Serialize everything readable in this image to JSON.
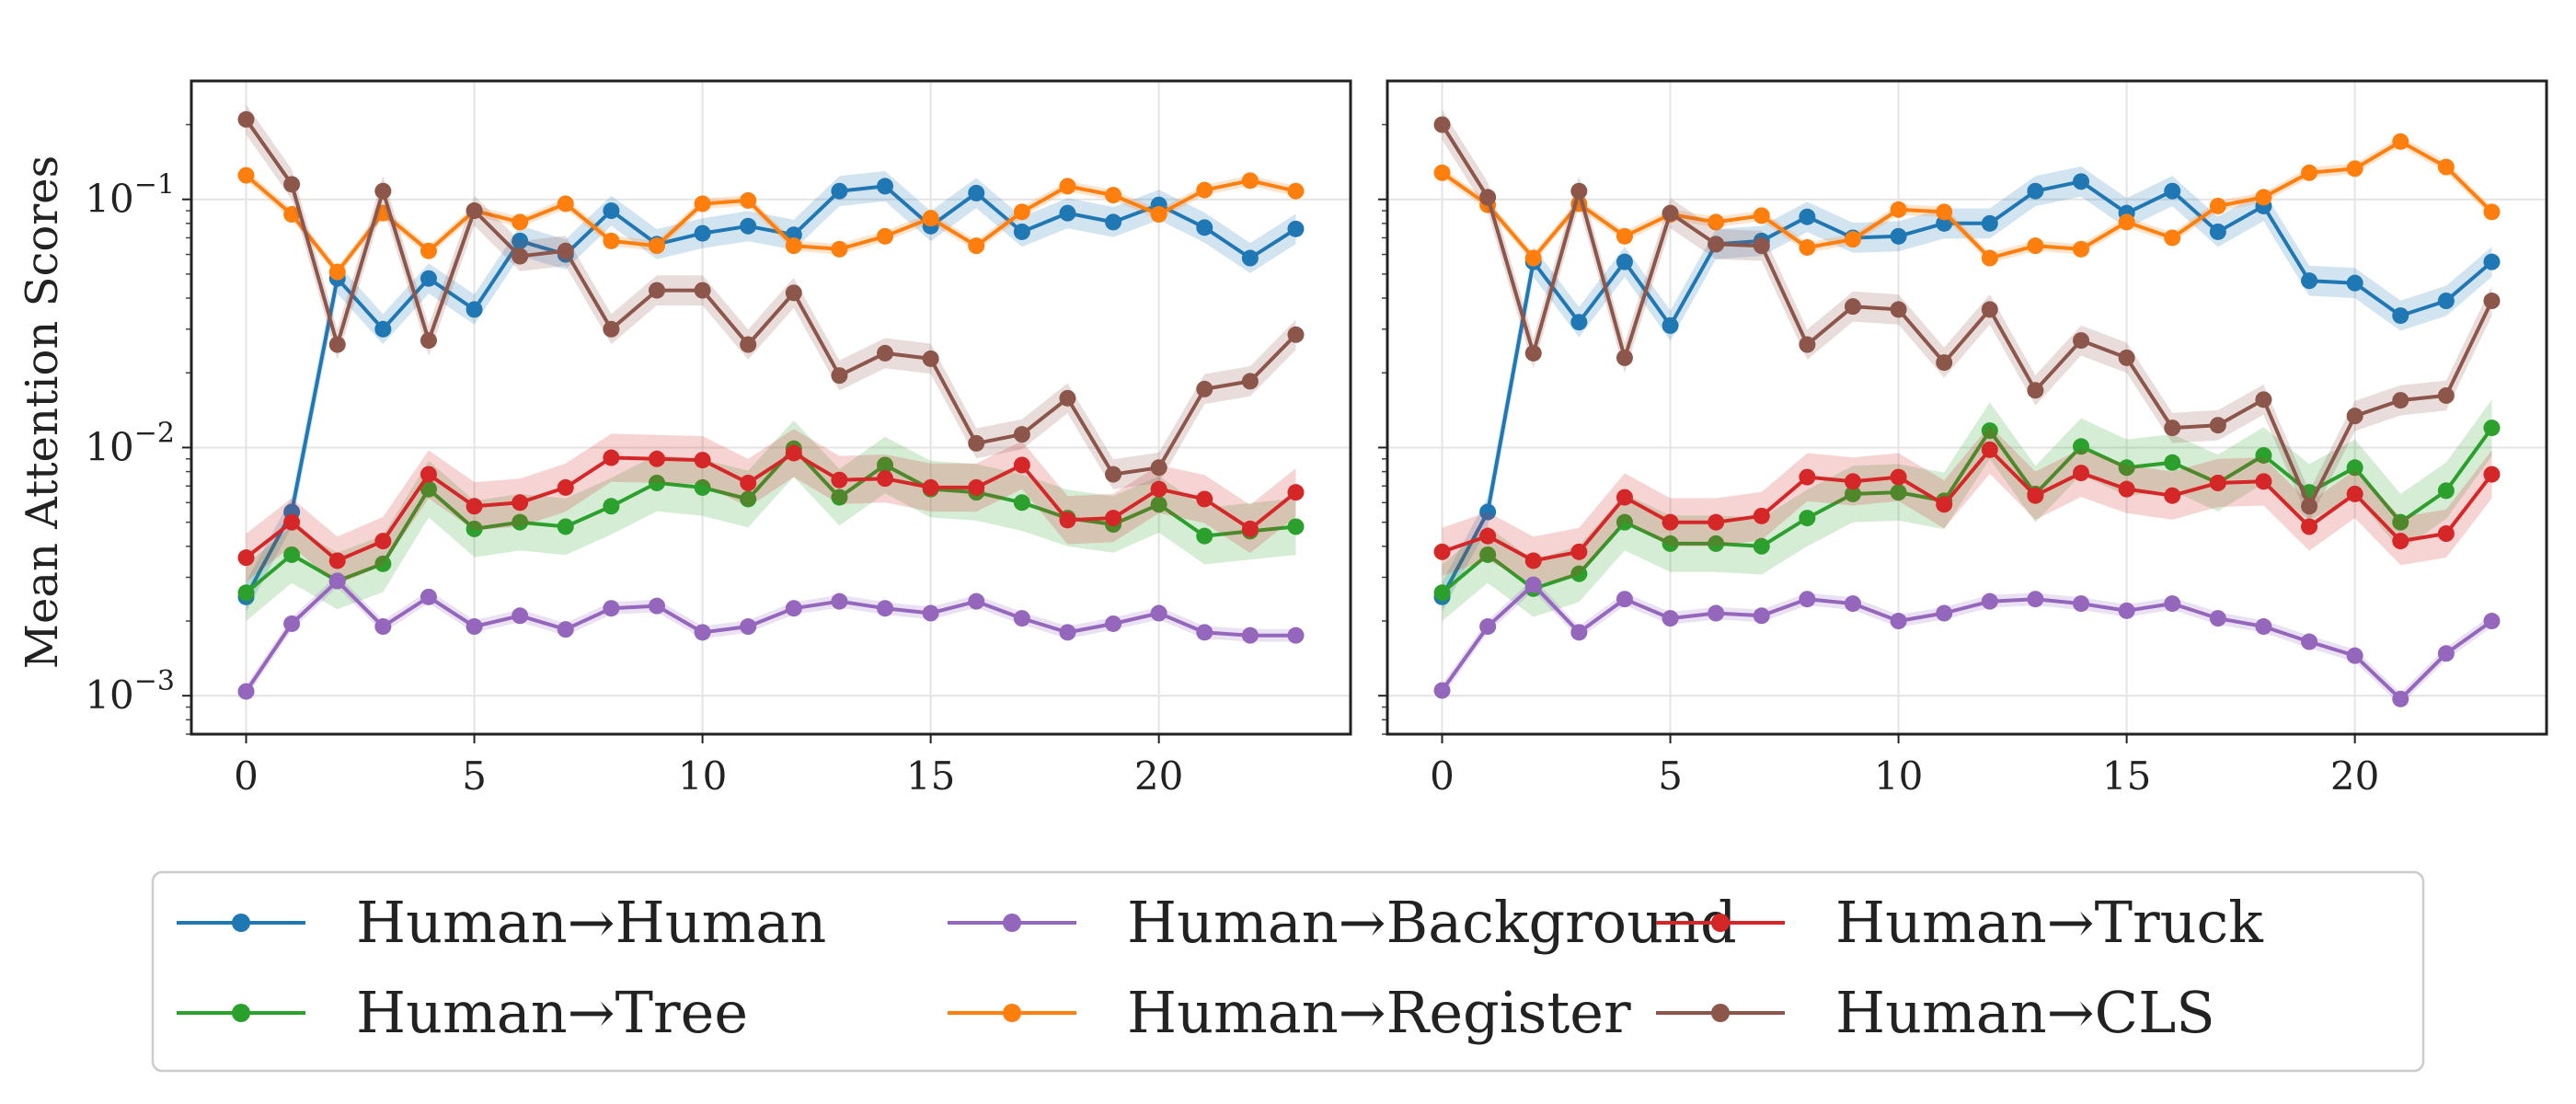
{
  "chart_data": {
    "type": "line",
    "ylabel": "Mean Attention Scores",
    "yscale": "log",
    "ylim": [
      0.0007,
      0.3
    ],
    "xlim": [
      -1.2,
      24.2
    ],
    "xticks": [
      0,
      5,
      10,
      15,
      20
    ],
    "yticks": [
      {
        "value": 0.001,
        "base": "10",
        "exp": "−3"
      },
      {
        "value": 0.01,
        "base": "10",
        "exp": "−2"
      },
      {
        "value": 0.1,
        "base": "10",
        "exp": "−1"
      }
    ],
    "grid": true,
    "legend_placement": "bottom",
    "series_meta": [
      {
        "name": "Human→Human",
        "color": "#1f77b4"
      },
      {
        "name": "Human→Register",
        "color": "#ff7f0e"
      },
      {
        "name": "Human→Tree",
        "color": "#2ca02c"
      },
      {
        "name": "Human→Truck",
        "color": "#d62728"
      },
      {
        "name": "Human→Background",
        "color": "#9467bd"
      },
      {
        "name": "Human→CLS",
        "color": "#8c564b"
      }
    ],
    "legend_order": [
      0,
      2,
      4,
      1,
      3,
      5
    ],
    "panels": [
      {
        "name": "left",
        "x": [
          0,
          1,
          2,
          3,
          4,
          5,
          6,
          7,
          8,
          9,
          10,
          11,
          12,
          13,
          14,
          15,
          16,
          17,
          18,
          19,
          20,
          21,
          22,
          23
        ],
        "series": [
          {
            "name": "Human→Human",
            "band": 0.15,
            "values": [
              0.0025,
              0.0055,
              0.048,
              0.03,
              0.048,
              0.036,
              0.068,
              0.06,
              0.09,
              0.066,
              0.073,
              0.078,
              0.072,
              0.108,
              0.113,
              0.078,
              0.106,
              0.074,
              0.088,
              0.081,
              0.095,
              0.077,
              0.058,
              0.076
            ]
          },
          {
            "name": "Human→Register",
            "band": 0.05,
            "values": [
              0.125,
              0.087,
              0.051,
              0.088,
              0.062,
              0.09,
              0.081,
              0.096,
              0.068,
              0.065,
              0.096,
              0.099,
              0.065,
              0.063,
              0.071,
              0.084,
              0.065,
              0.089,
              0.113,
              0.104,
              0.087,
              0.109,
              0.119,
              0.108
            ]
          },
          {
            "name": "Human→Tree",
            "band": 0.3,
            "values": [
              0.0026,
              0.0037,
              0.0029,
              0.0034,
              0.0068,
              0.0047,
              0.005,
              0.0048,
              0.0058,
              0.0072,
              0.0069,
              0.0062,
              0.0099,
              0.0063,
              0.0085,
              0.0068,
              0.0066,
              0.006,
              0.0052,
              0.0049,
              0.0059,
              0.0044,
              0.0046,
              0.0048
            ]
          },
          {
            "name": "Human→Truck",
            "band": 0.25,
            "values": [
              0.0036,
              0.005,
              0.0035,
              0.0042,
              0.0078,
              0.0058,
              0.006,
              0.0069,
              0.0091,
              0.009,
              0.0089,
              0.0072,
              0.0095,
              0.0074,
              0.0075,
              0.0069,
              0.0069,
              0.0085,
              0.0051,
              0.0052,
              0.0068,
              0.0062,
              0.0047,
              0.0066
            ]
          },
          {
            "name": "Human→Background",
            "band": 0.06,
            "values": [
              0.00104,
              0.00195,
              0.0029,
              0.0019,
              0.0025,
              0.0019,
              0.0021,
              0.00185,
              0.00225,
              0.0023,
              0.0018,
              0.0019,
              0.00225,
              0.0024,
              0.00225,
              0.00215,
              0.0024,
              0.00205,
              0.0018,
              0.00195,
              0.00215,
              0.0018,
              0.00175,
              0.00175
            ]
          },
          {
            "name": "Human→CLS",
            "band": 0.15,
            "values": [
              0.21,
              0.115,
              0.026,
              0.108,
              0.027,
              0.09,
              0.059,
              0.062,
              0.03,
              0.043,
              0.043,
              0.026,
              0.042,
              0.0195,
              0.024,
              0.0228,
              0.0104,
              0.0113,
              0.0158,
              0.0078,
              0.0083,
              0.0172,
              0.0185,
              0.0285
            ]
          }
        ]
      },
      {
        "name": "right",
        "x": [
          0,
          1,
          2,
          3,
          4,
          5,
          6,
          7,
          8,
          9,
          10,
          11,
          12,
          13,
          14,
          15,
          16,
          17,
          18,
          19,
          20,
          21,
          22,
          23
        ],
        "series": [
          {
            "name": "Human→Human",
            "band": 0.15,
            "values": [
              0.0025,
              0.0055,
              0.056,
              0.032,
              0.056,
              0.031,
              0.066,
              0.068,
              0.085,
              0.07,
              0.071,
              0.08,
              0.08,
              0.108,
              0.118,
              0.088,
              0.108,
              0.074,
              0.094,
              0.047,
              0.046,
              0.034,
              0.039,
              0.056
            ]
          },
          {
            "name": "Human→Register",
            "band": 0.05,
            "values": [
              0.128,
              0.095,
              0.058,
              0.096,
              0.071,
              0.087,
              0.081,
              0.086,
              0.064,
              0.069,
              0.091,
              0.089,
              0.058,
              0.065,
              0.063,
              0.081,
              0.07,
              0.094,
              0.102,
              0.128,
              0.133,
              0.171,
              0.135,
              0.089
            ]
          },
          {
            "name": "Human→Tree",
            "band": 0.3,
            "values": [
              0.0026,
              0.0037,
              0.0027,
              0.0031,
              0.005,
              0.0041,
              0.0041,
              0.004,
              0.0052,
              0.0065,
              0.0066,
              0.0061,
              0.0117,
              0.0065,
              0.0101,
              0.0083,
              0.0087,
              0.0072,
              0.0093,
              0.0066,
              0.0083,
              0.005,
              0.0067,
              0.012
            ]
          },
          {
            "name": "Human→Truck",
            "band": 0.25,
            "values": [
              0.0038,
              0.0044,
              0.0035,
              0.0038,
              0.0063,
              0.005,
              0.005,
              0.0053,
              0.0076,
              0.0073,
              0.0076,
              0.0059,
              0.0098,
              0.0064,
              0.0079,
              0.0068,
              0.0064,
              0.0072,
              0.0073,
              0.0048,
              0.0065,
              0.0042,
              0.0045,
              0.0078
            ]
          },
          {
            "name": "Human→Background",
            "band": 0.06,
            "values": [
              0.00105,
              0.0019,
              0.0028,
              0.0018,
              0.00245,
              0.00205,
              0.00215,
              0.0021,
              0.00245,
              0.00235,
              0.002,
              0.00215,
              0.0024,
              0.00245,
              0.00235,
              0.0022,
              0.00235,
              0.00205,
              0.0019,
              0.00165,
              0.00145,
              0.00097,
              0.00148,
              0.002
            ]
          },
          {
            "name": "Human→CLS",
            "band": 0.15,
            "values": [
              0.2,
              0.102,
              0.024,
              0.108,
              0.023,
              0.088,
              0.066,
              0.065,
              0.026,
              0.037,
              0.036,
              0.022,
              0.036,
              0.017,
              0.027,
              0.023,
              0.012,
              0.0123,
              0.0156,
              0.0058,
              0.0134,
              0.0155,
              0.0162,
              0.039
            ]
          }
        ]
      }
    ]
  }
}
